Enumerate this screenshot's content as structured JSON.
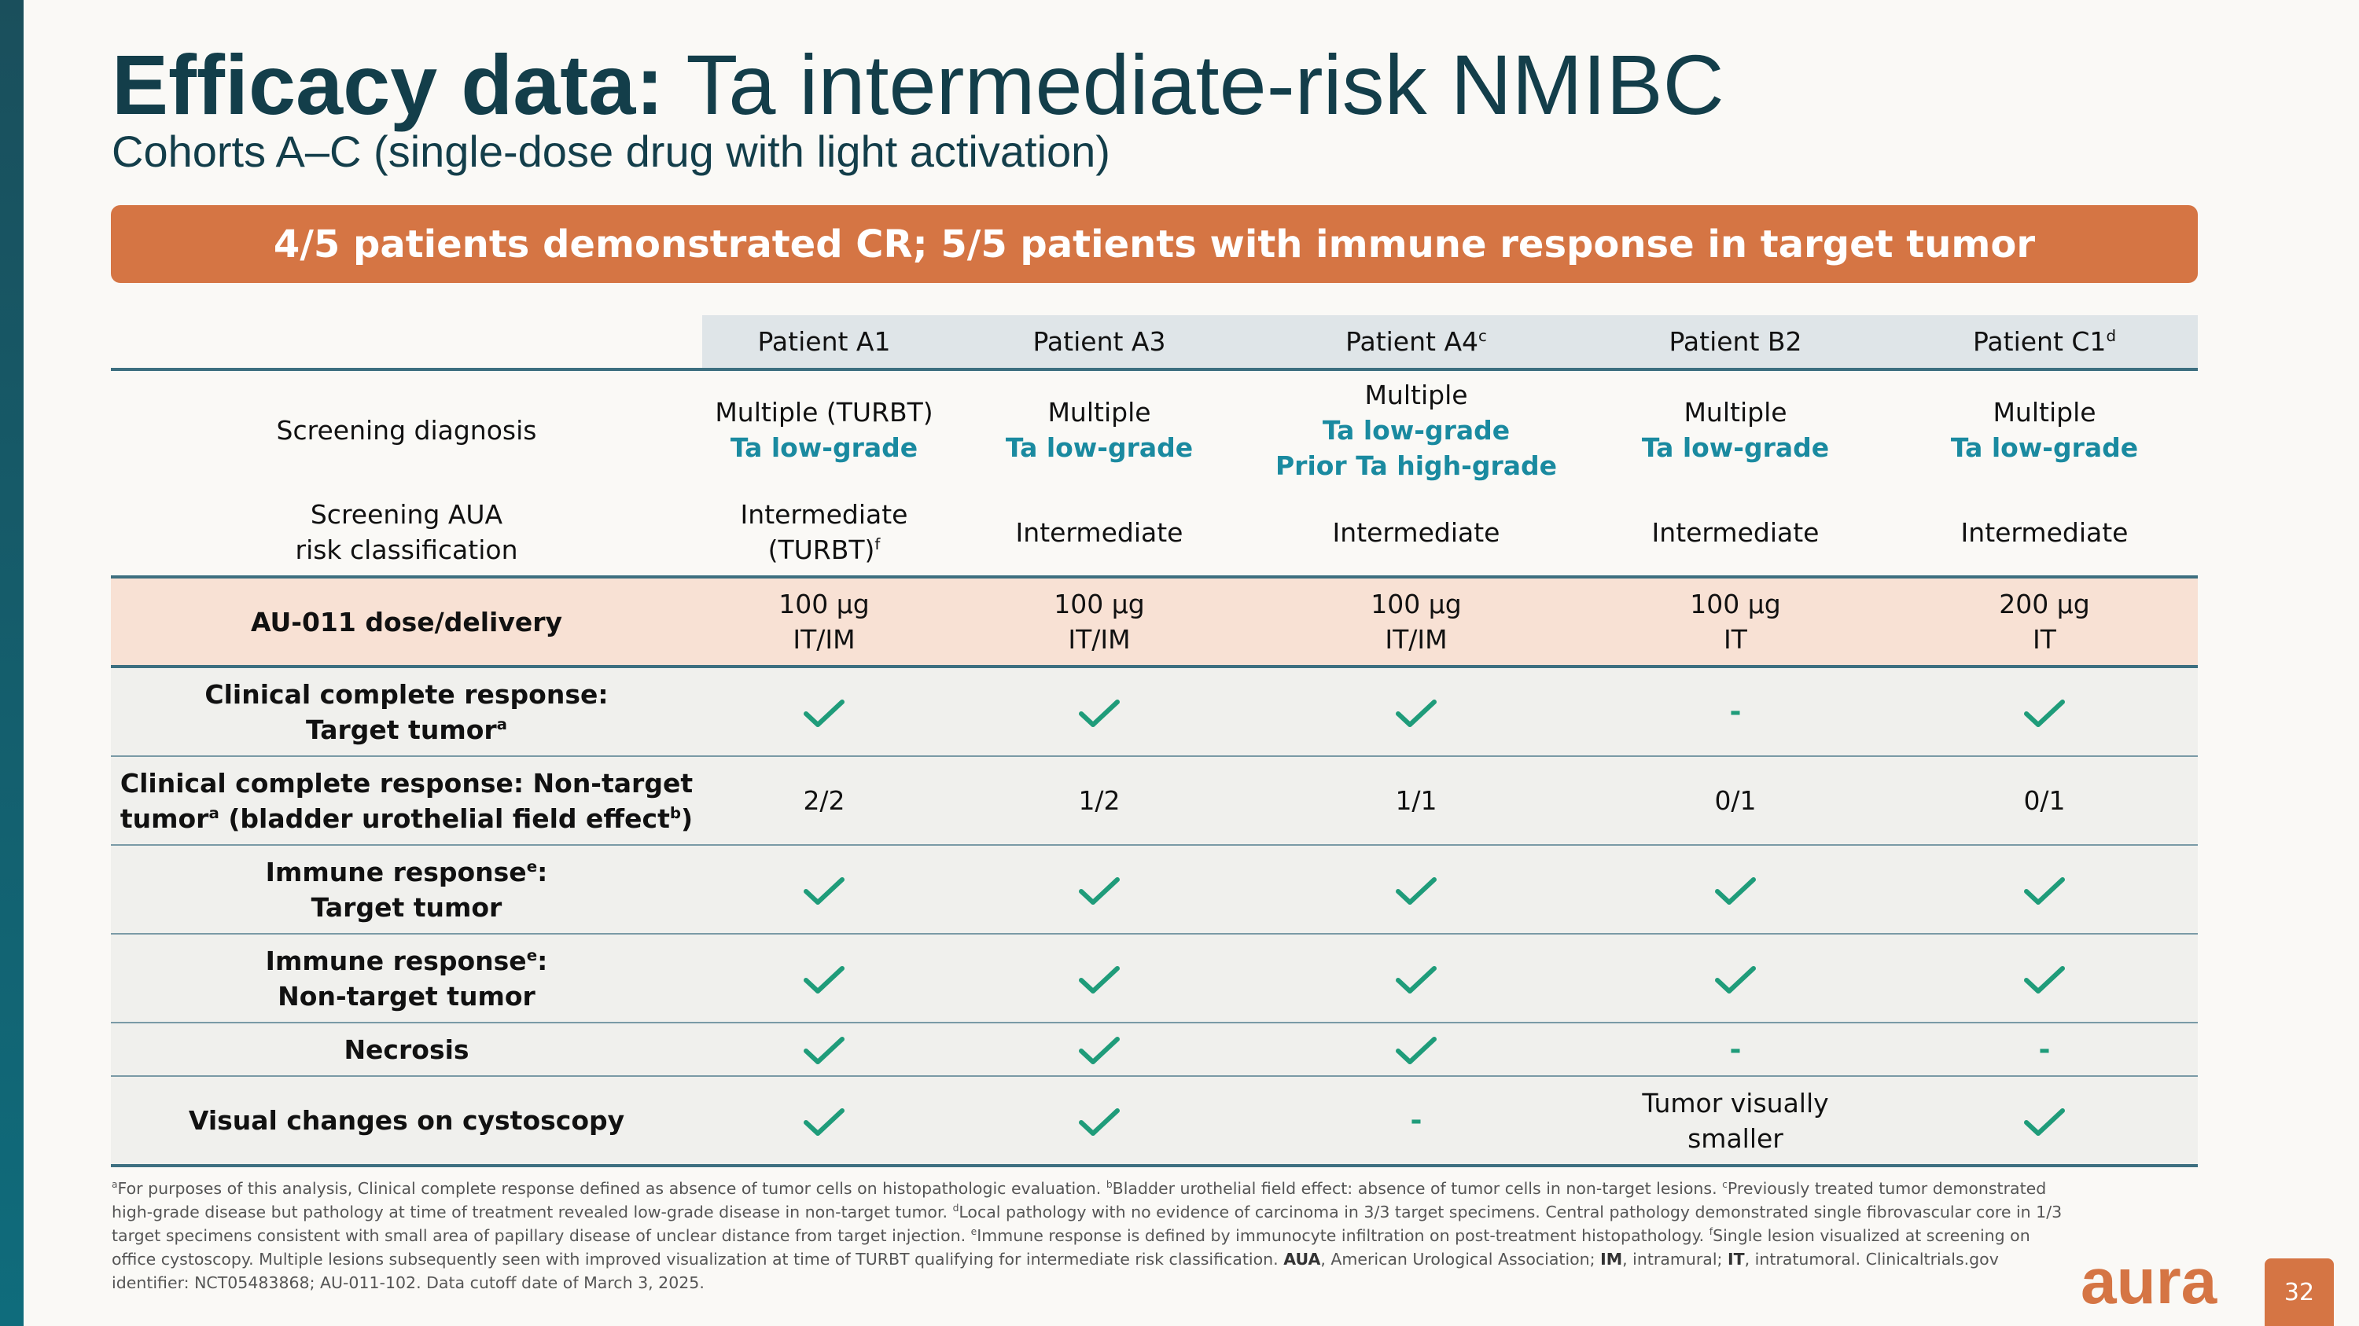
{
  "title_bold": "Efficacy data:",
  "title_rest": " Ta intermediate-risk NMIBC",
  "subtitle": "Cohorts A–C (single-dose drug with light activation)",
  "banner": "4/5 patients demonstrated CR; 5/5 patients with immune response in target tumor",
  "columns": [
    {
      "label": "Patient A1",
      "sup": ""
    },
    {
      "label": "Patient A3",
      "sup": ""
    },
    {
      "label": "Patient A4",
      "sup": "c"
    },
    {
      "label": "Patient B2",
      "sup": ""
    },
    {
      "label": "Patient C1",
      "sup": "d"
    }
  ],
  "rows": {
    "diagnosis": {
      "label": "Screening diagnosis",
      "cells": [
        {
          "line1": "Multiple (TURBT)",
          "line2": "Ta low-grade",
          "line3": ""
        },
        {
          "line1": "Multiple",
          "line2": "Ta low-grade",
          "line3": ""
        },
        {
          "line1": "Multiple",
          "line2": "Ta low-grade",
          "line3": "Prior Ta high-grade"
        },
        {
          "line1": "Multiple",
          "line2": "Ta low-grade",
          "line3": ""
        },
        {
          "line1": "Multiple",
          "line2": "Ta low-grade",
          "line3": ""
        }
      ]
    },
    "risk": {
      "label_line1": "Screening AUA",
      "label_line2": "risk classification",
      "cells": [
        {
          "line1": "Intermediate",
          "line2": "(TURBT)",
          "sup": "f"
        },
        {
          "line1": "Intermediate"
        },
        {
          "line1": "Intermediate"
        },
        {
          "line1": "Intermediate"
        },
        {
          "line1": "Intermediate"
        }
      ]
    },
    "dose": {
      "label": "AU-011 dose/delivery",
      "cells": [
        {
          "amount": "100 µg",
          "route": "IT/IM"
        },
        {
          "amount": "100 µg",
          "route": "IT/IM"
        },
        {
          "amount": "100 µg",
          "route": "IT/IM"
        },
        {
          "amount": "100 µg",
          "route": "IT"
        },
        {
          "amount": "200 µg",
          "route": "IT"
        }
      ]
    },
    "cr_target": {
      "label_line1": "Clinical complete response:",
      "label_line2": "Target tumor",
      "label_sup": "a",
      "cells": [
        "check",
        "check",
        "check",
        "-",
        "check"
      ]
    },
    "cr_nontarget": {
      "label_line1": "Clinical complete response: Non-target",
      "label_part_a": "tumor",
      "label_sup_a": "a",
      "label_part_b": " (bladder urothelial field effect",
      "label_sup_b": "b",
      "label_part_c": ")",
      "cells": [
        "2/2",
        "1/2",
        "1/1",
        "0/1",
        "0/1"
      ]
    },
    "immune_target": {
      "label_line1": "Immune response",
      "label_sup": "e",
      "label_colon": ":",
      "label_line2": "Target tumor",
      "cells": [
        "check",
        "check",
        "check",
        "check",
        "check"
      ]
    },
    "immune_nontarget": {
      "label_line1": "Immune response",
      "label_sup": "e",
      "label_colon": ":",
      "label_line2": "Non-target tumor",
      "cells": [
        "check",
        "check",
        "check",
        "check",
        "check"
      ]
    },
    "necrosis": {
      "label": "Necrosis",
      "cells": [
        "check",
        "check",
        "check",
        "-",
        "-"
      ]
    },
    "visual": {
      "label": "Visual changes on cystoscopy",
      "cells": [
        "check",
        "check",
        "-",
        "Tumor visually smaller",
        "check"
      ],
      "b2_line1": "Tumor visually",
      "b2_line2": "smaller"
    }
  },
  "footnote": {
    "s1_sup": "a",
    "s1": "For purposes of this analysis, Clinical complete response defined as absence of tumor cells on histopathologic evaluation.",
    "s2_sup": "b",
    "s2": "Bladder urothelial field effect: absence of tumor cells in non-target lesions.",
    "s3_sup": "c",
    "s3": "Previously treated tumor demonstrated high-grade disease but pathology at time of treatment revealed low-grade disease in non-target tumor.",
    "s4_sup": "d",
    "s4": "Local pathology with no evidence of carcinoma in 3/3 target specimens.  Central pathology demonstrated single fibrovascular core in 1/3 target specimens consistent with small area of papillary disease of unclear distance from target injection.",
    "s5_sup": "e",
    "s5": "Immune response is defined by immunocyte infiltration on post-treatment histopathology.",
    "s6_sup": "f",
    "s6": "Single lesion visualized at screening on office cystoscopy.  Multiple lesions subsequently seen with improved visualization at time of TURBT qualifying for intermediate risk classification.",
    "abbr1": "AUA",
    "abbr1_text": ", American Urological Association; ",
    "abbr2": "IM",
    "abbr2_text": ", intramural; ",
    "abbr3": "IT",
    "abbr3_text": ", intratumoral. Clinicaltrials.gov identifier: NCT05483868; AU-011-102. Data cutoff date of March 3, 2025."
  },
  "logo_text": "aura",
  "page_number": "32",
  "colors": {
    "accent": "#d57544",
    "teal": "#1a8aa0",
    "green": "#1f9c7a",
    "olive": "#b19520",
    "navy": "#133e4a"
  }
}
